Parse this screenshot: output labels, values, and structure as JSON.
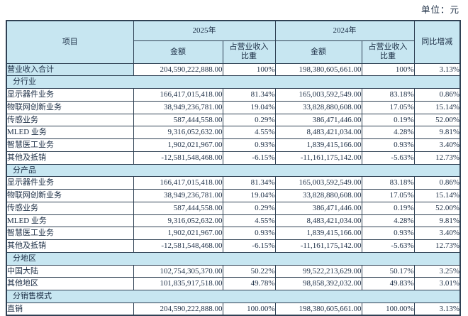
{
  "unit_label": "单位：元",
  "colors": {
    "header_bg": "#c7e6f1",
    "border": "#2f4154",
    "text": "#1c2e45"
  },
  "table": {
    "headers": {
      "item": "项目",
      "year_2025": "2025年",
      "year_2024": "2024年",
      "amount_2025": "金额",
      "pct_2025": "占营业收入比重",
      "amount_2024": "金额",
      "pct_2024": "占营业收入比重",
      "yoy_change": "同比增减"
    },
    "total_row": {
      "label": "营业收入合计",
      "amount_2025": "204,590,222,888.00",
      "pct_2025": "100%",
      "amount_2024": "198,380,605,661.00",
      "pct_2024": "100%",
      "yoy": "3.13%"
    },
    "sections": [
      {
        "title": "分行业",
        "rows": [
          {
            "label": "显示器件业务",
            "amount_2025": "166,417,015,418.00",
            "pct_2025": "81.34%",
            "amount_2024": "165,003,592,549.00",
            "pct_2024": "83.18%",
            "yoy": "0.86%"
          },
          {
            "label": "物联网创新业务",
            "amount_2025": "38,949,236,781.00",
            "pct_2025": "19.04%",
            "amount_2024": "33,828,880,608.00",
            "pct_2024": "17.05%",
            "yoy": "15.14%"
          },
          {
            "label": "传感业务",
            "amount_2025": "587,444,558.00",
            "pct_2025": "0.29%",
            "amount_2024": "386,471,446.00",
            "pct_2024": "0.19%",
            "yoy": "52.00%"
          },
          {
            "label": "MLED 业务",
            "amount_2025": "9,316,052,632.00",
            "pct_2025": "4.55%",
            "amount_2024": "8,483,421,034.00",
            "pct_2024": "4.28%",
            "yoy": "9.81%"
          },
          {
            "label": "智慧医工业务",
            "amount_2025": "1,902,021,967.00",
            "pct_2025": "0.93%",
            "amount_2024": "1,839,415,166.00",
            "pct_2024": "0.93%",
            "yoy": "3.40%"
          },
          {
            "label": "其他及抵销",
            "amount_2025": "-12,581,548,468.00",
            "pct_2025": "-6.15%",
            "amount_2024": "-11,161,175,142.00",
            "pct_2024": "-5.63%",
            "yoy": "12.73%"
          }
        ]
      },
      {
        "title": "分产品",
        "rows": [
          {
            "label": "显示器件业务",
            "amount_2025": "166,417,015,418.00",
            "pct_2025": "81.34%",
            "amount_2024": "165,003,592,549.00",
            "pct_2024": "83.18%",
            "yoy": "0.86%"
          },
          {
            "label": "物联网创新业务",
            "amount_2025": "38,949,236,781.00",
            "pct_2025": "19.04%",
            "amount_2024": "33,828,880,608.00",
            "pct_2024": "17.05%",
            "yoy": "15.14%"
          },
          {
            "label": "传感业务",
            "amount_2025": "587,444,558.00",
            "pct_2025": "0.29%",
            "amount_2024": "386,471,446.00",
            "pct_2024": "0.19%",
            "yoy": "52.00%"
          },
          {
            "label": "MLED 业务",
            "amount_2025": "9,316,052,632.00",
            "pct_2025": "4.55%",
            "amount_2024": "8,483,421,034.00",
            "pct_2024": "4.28%",
            "yoy": "9.81%"
          },
          {
            "label": "智慧医工业务",
            "amount_2025": "1,902,021,967.00",
            "pct_2025": "0.93%",
            "amount_2024": "1,839,415,166.00",
            "pct_2024": "0.93%",
            "yoy": "3.40%"
          },
          {
            "label": "其他及抵销",
            "amount_2025": "-12,581,548,468.00",
            "pct_2025": "-6.15%",
            "amount_2024": "-11,161,175,142.00",
            "pct_2024": "-5.63%",
            "yoy": "12.73%"
          }
        ]
      },
      {
        "title": "分地区",
        "rows": [
          {
            "label": "中国大陆",
            "amount_2025": "102,754,305,370.00",
            "pct_2025": "50.22%",
            "amount_2024": "99,522,213,629.00",
            "pct_2024": "50.17%",
            "yoy": "3.25%"
          },
          {
            "label": "其他地区",
            "amount_2025": "101,835,917,518.00",
            "pct_2025": "49.78%",
            "amount_2024": "98,858,392,032.00",
            "pct_2024": "49.83%",
            "yoy": "3.01%"
          }
        ]
      },
      {
        "title": "分销售模式",
        "rows": [
          {
            "label": "直销",
            "amount_2025": "204,590,222,888.00",
            "pct_2025": "100.00%",
            "amount_2024": "198,380,605,661.00",
            "pct_2024": "100.00%",
            "yoy": "3.13%"
          }
        ]
      }
    ]
  }
}
